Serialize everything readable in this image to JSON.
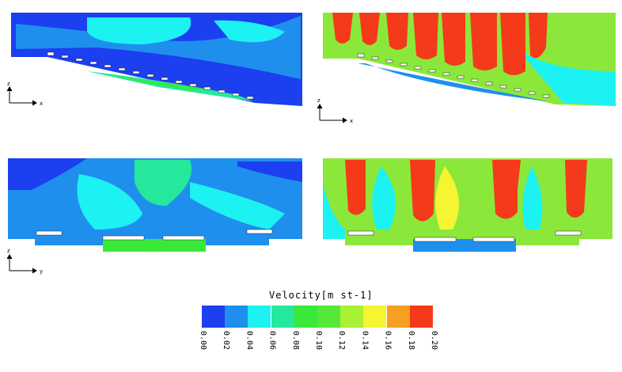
{
  "chart_data": {
    "type": "heatmap",
    "title": "Velocity[m st-1]",
    "legend": {
      "title": "Velocity[m st-1]",
      "colors": [
        "#1c3ff0",
        "#1f8fee",
        "#1cf2f2",
        "#26e89c",
        "#3ae83a",
        "#55e83a",
        "#aaf034",
        "#f5f532",
        "#f5a020",
        "#f43a1a"
      ],
      "ticks": [
        "0.00",
        "0.02",
        "0.04",
        "0.06",
        "0.08",
        "0.10",
        "0.12",
        "0.14",
        "0.16",
        "0.18",
        "0.20"
      ],
      "range": [
        0.0,
        0.2
      ]
    },
    "panels": [
      {
        "id": "top-left",
        "axes": {
          "vertical": "z",
          "horizontal": "x"
        }
      },
      {
        "id": "top-right",
        "axes": {
          "vertical": "z",
          "horizontal": "x"
        },
        "hotspot_count": 8
      },
      {
        "id": "bottom-left",
        "axes": {
          "vertical": "z",
          "horizontal": "y"
        }
      },
      {
        "id": "bottom-right",
        "axes": {
          "vertical": "z",
          "horizontal": "y"
        },
        "hotspot_count": 5
      }
    ]
  }
}
